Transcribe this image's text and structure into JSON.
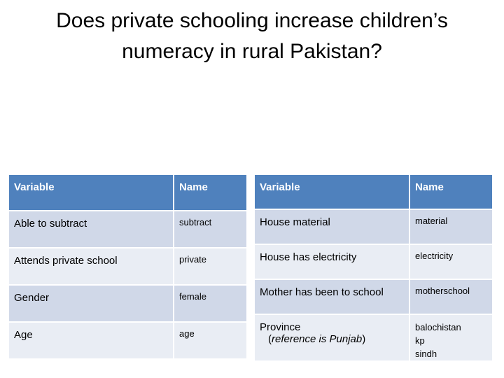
{
  "slide": {
    "title_line1": "Does private schooling increase children’s",
    "title_line2": "numeracy in rural Pakistan?"
  },
  "left_table": {
    "headers": [
      "Variable",
      "Name"
    ],
    "rows": [
      {
        "variable": "Able to subtract",
        "name": "subtract"
      },
      {
        "variable": "Attends private school",
        "name": "private"
      },
      {
        "variable": "Gender",
        "name": "female"
      },
      {
        "variable": "Age",
        "name": "age"
      }
    ]
  },
  "right_table": {
    "headers": [
      "Variable",
      "Name"
    ],
    "rows": [
      {
        "variable": "House material",
        "name": "material"
      },
      {
        "variable": "House has electricity",
        "name": "electricity"
      },
      {
        "variable": "Mother has been to school",
        "name": "motherschool"
      },
      {
        "variable": "Province",
        "variable_note_open": "(",
        "variable_note": "reference is Punjab",
        "variable_note_close": ")",
        "names": [
          "balochistan",
          "kp",
          "sindh"
        ]
      }
    ]
  },
  "colors": {
    "header_bg": "#4f81bd",
    "row_odd_bg": "#d0d8e8",
    "row_even_bg": "#e9edf4"
  }
}
